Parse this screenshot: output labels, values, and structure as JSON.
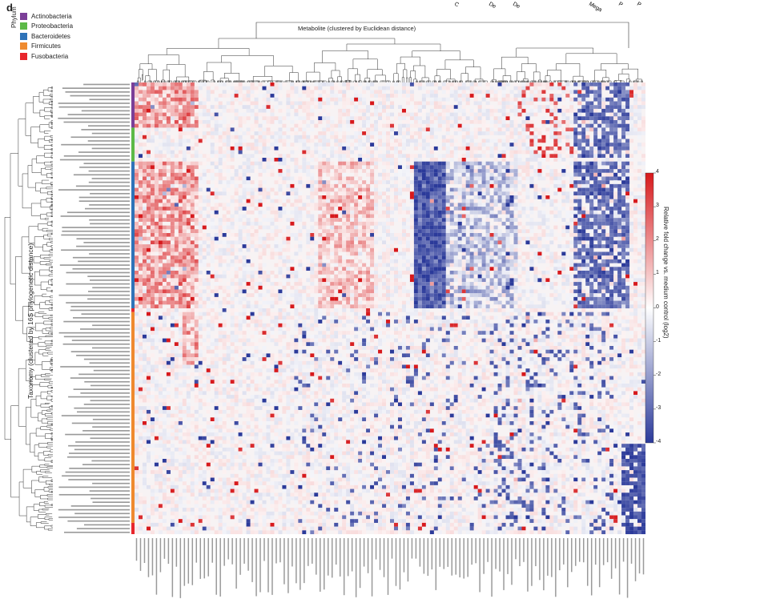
{
  "panel_label": "d",
  "legend": {
    "title": "Phylum",
    "items": [
      {
        "label": "Actinobacteria",
        "color": "#7b3f98"
      },
      {
        "label": "Proteobacteria",
        "color": "#5cb947"
      },
      {
        "label": "Bacteroidetes",
        "color": "#2f73b8"
      },
      {
        "label": "Firmicutes",
        "color": "#ef8a2f"
      },
      {
        "label": "Fusobacteria",
        "color": "#e8262c"
      }
    ]
  },
  "chart_data": {
    "type": "heatmap",
    "title": "Metabolite (clustered by Euclidean distance)",
    "ylabel": "Taxonomy (clustered by 16S phylogenetic distance)",
    "colorbar": {
      "label": "Relative fold change vs. medium control (log2)",
      "range": [
        -4,
        4
      ],
      "ticks": [
        4,
        3,
        2,
        1,
        0,
        -1,
        -2,
        -3,
        -4
      ],
      "low_color": "#2b3a9a",
      "mid_color": "#ffffff",
      "high_color": "#d7191c"
    },
    "n_rows": 120,
    "n_cols": 128,
    "row_phylum_blocks": [
      {
        "phylum": "Actinobacteria",
        "rows": 12
      },
      {
        "phylum": "Proteobacteria",
        "rows": 9
      },
      {
        "phylum": "Bacteroidetes",
        "rows": 39
      },
      {
        "phylum": "Fusobacteria",
        "rows": 1
      },
      {
        "phylum": "Firmicutes",
        "rows": 56
      },
      {
        "phylum": "Fusobacteria",
        "rows": 3
      }
    ],
    "row_labels_legible": false,
    "col_labels_legible": false,
    "top_labels_partial": [
      "C",
      "De",
      "De",
      "Mega",
      "P",
      "P"
    ]
  }
}
